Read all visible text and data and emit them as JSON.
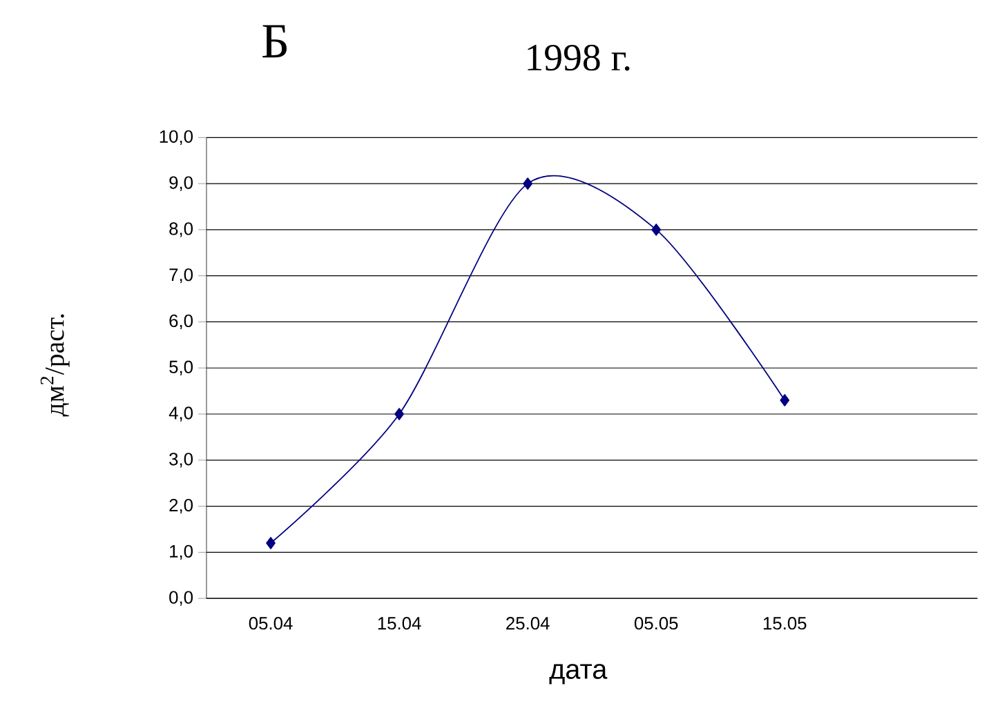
{
  "chart_data": {
    "type": "line",
    "title": "1998 г.",
    "annotations": [
      "Б"
    ],
    "xlabel": "дата",
    "ylabel": "дм$^{2}$/раст.",
    "categories": [
      "05.04",
      "15.04",
      "25.04",
      "05.05",
      "15.05",
      null
    ],
    "series": [
      {
        "color": "#000080",
        "values": [
          1.2,
          4.0,
          9.0,
          8.0,
          4.3,
          null
        ]
      }
    ],
    "ylim": [
      0,
      10
    ],
    "yticks": [
      {
        "value": 0,
        "label": "0,0"
      },
      {
        "value": 1,
        "label": "1,0"
      },
      {
        "value": 2,
        "label": "2,0"
      },
      {
        "value": 3,
        "label": "3,0"
      },
      {
        "value": 4,
        "label": "4,0"
      },
      {
        "value": 5,
        "label": "5,0"
      },
      {
        "value": 6,
        "label": "6,0"
      },
      {
        "value": 7,
        "label": "7,0"
      },
      {
        "value": 8,
        "label": "8,0"
      },
      {
        "value": 9,
        "label": "9,0"
      },
      {
        "value": 10,
        "label": "10,0"
      }
    ],
    "grid": "y",
    "marker": "diamond",
    "line_style": "solid"
  }
}
